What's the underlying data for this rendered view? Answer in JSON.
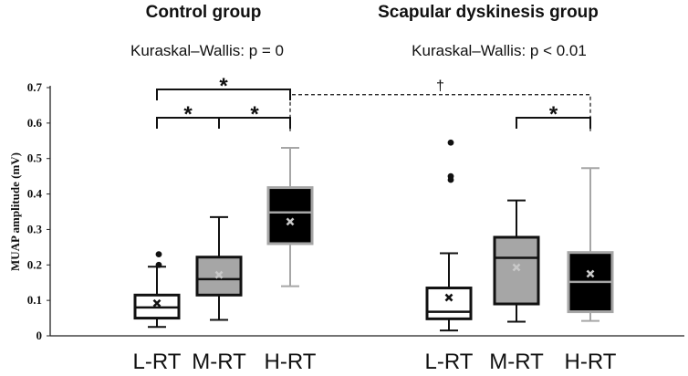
{
  "chart_data": {
    "type": "box",
    "ylabel": "MUAP amplitude (mV)",
    "ylim": [
      0,
      0.7
    ],
    "yticks": [
      "0",
      "0.1",
      "0.2",
      "0.3",
      "0.4",
      "0.5",
      "0.6",
      "0.7"
    ],
    "groups": [
      {
        "title": "Control group",
        "test": "Kuraskal–Wallis: p = 0",
        "boxes": [
          {
            "category": "L-RT",
            "fill": "#ffffff",
            "edge": "#111111",
            "median_color": "#111111",
            "whisker_low": 0.025,
            "q1": 0.05,
            "median": 0.08,
            "q3": 0.115,
            "whisker_high": 0.195,
            "mean": 0.092,
            "outliers": [
              0.2,
              0.23
            ]
          },
          {
            "category": "M-RT",
            "fill": "#a6a6a6",
            "edge": "#111111",
            "median_color": "#111111",
            "whisker_low": 0.045,
            "q1": 0.115,
            "median": 0.16,
            "q3": 0.222,
            "whisker_high": 0.335,
            "mean": 0.172,
            "outliers": []
          },
          {
            "category": "H-RT",
            "fill": "#000000",
            "edge": "#a6a6a6",
            "median_color": "#a6a6a6",
            "whisker_low": 0.14,
            "q1": 0.26,
            "median": 0.348,
            "q3": 0.418,
            "whisker_high": 0.53,
            "mean": 0.322,
            "outliers": []
          }
        ]
      },
      {
        "title": "Scapular dyskinesis group",
        "test": "Kuraskal–Wallis: p < 0.01",
        "boxes": [
          {
            "category": "L-RT",
            "fill": "#ffffff",
            "edge": "#111111",
            "median_color": "#111111",
            "whisker_low": 0.015,
            "q1": 0.048,
            "median": 0.068,
            "q3": 0.135,
            "whisker_high": 0.233,
            "mean": 0.108,
            "outliers": [
              0.44,
              0.45,
              0.545
            ]
          },
          {
            "category": "M-RT",
            "fill": "#a6a6a6",
            "edge": "#111111",
            "median_color": "#111111",
            "whisker_low": 0.04,
            "q1": 0.09,
            "median": 0.22,
            "q3": 0.278,
            "whisker_high": 0.382,
            "mean": 0.193,
            "outliers": []
          },
          {
            "category": "H-RT",
            "fill": "#000000",
            "edge": "#a6a6a6",
            "median_color": "#a6a6a6",
            "whisker_low": 0.042,
            "q1": 0.068,
            "median": 0.152,
            "q3": 0.235,
            "whisker_high": 0.473,
            "mean": 0.175,
            "outliers": []
          }
        ]
      }
    ],
    "significance": [
      {
        "from": [
          0,
          0
        ],
        "to": [
          0,
          2
        ],
        "level": 0.695,
        "label": "*",
        "style": "solid"
      },
      {
        "from": [
          0,
          0
        ],
        "to": [
          0,
          1
        ],
        "level": 0.615,
        "label": "*",
        "style": "solid"
      },
      {
        "from": [
          0,
          1
        ],
        "to": [
          0,
          2
        ],
        "level": 0.615,
        "label": "*",
        "style": "solid"
      },
      {
        "from": [
          1,
          1
        ],
        "to": [
          1,
          2
        ],
        "level": 0.615,
        "label": "*",
        "style": "solid",
        "drop": [
          1,
          1
        ]
      },
      {
        "from": [
          0,
          2
        ],
        "to": [
          1,
          2
        ],
        "level": 0.68,
        "label": "†",
        "style": "dashed"
      }
    ],
    "colors": {
      "white_box": "#ffffff",
      "gray_box": "#a6a6a6",
      "black_box": "#000000",
      "mean_marker_light": "#111111",
      "mean_marker_dark": "#c8c8c8"
    }
  }
}
